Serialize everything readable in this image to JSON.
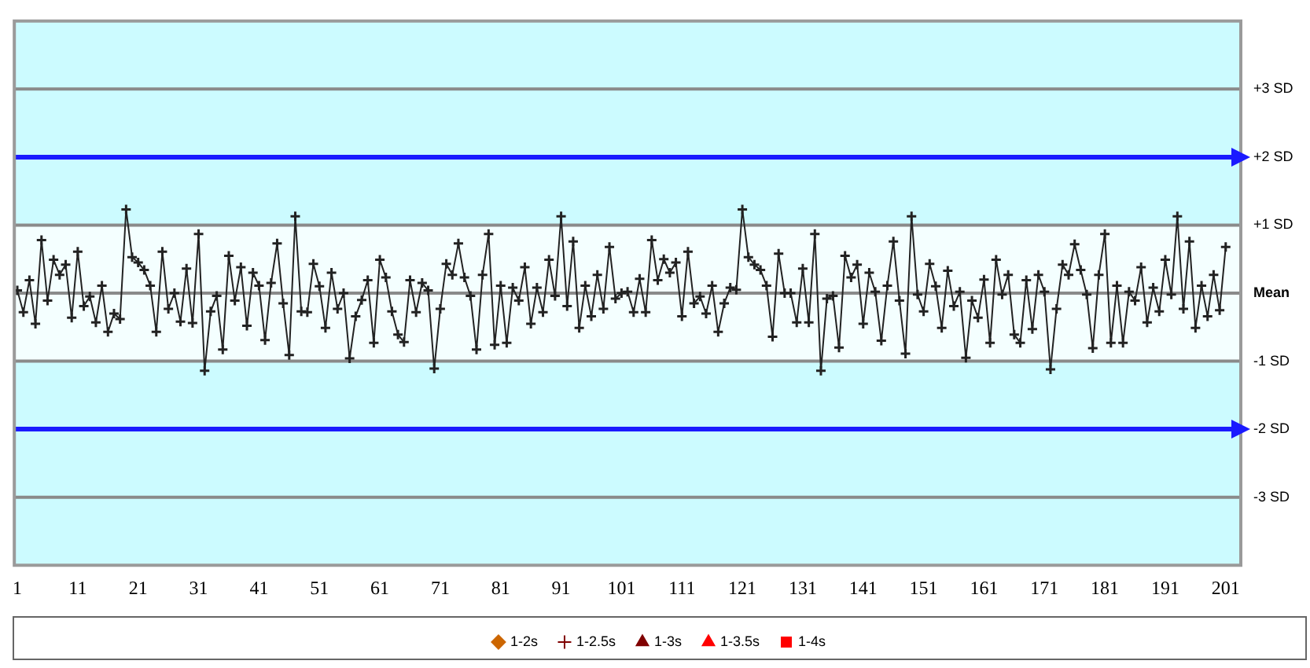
{
  "chart_data": {
    "type": "line",
    "x": [
      1,
      2,
      3,
      4,
      5,
      6,
      7,
      8,
      9,
      10,
      11,
      12,
      13,
      14,
      15,
      16,
      17,
      18,
      19,
      20,
      21,
      22,
      23,
      24,
      25,
      26,
      27,
      28,
      29,
      30,
      31,
      32,
      33,
      34,
      35,
      36,
      37,
      38,
      39,
      40,
      41,
      42,
      43,
      44,
      45,
      46,
      47,
      48,
      49,
      50,
      51,
      52,
      53,
      54,
      55,
      56,
      57,
      58,
      59,
      60,
      61,
      62,
      63,
      64,
      65,
      66,
      67,
      68,
      69,
      70,
      71,
      72,
      73,
      74,
      75,
      76,
      77,
      78,
      79,
      80,
      81,
      82,
      83,
      84,
      85,
      86,
      87,
      88,
      89,
      90,
      91,
      92,
      93,
      94,
      95,
      96,
      97,
      98,
      99,
      100,
      101,
      102,
      103,
      104,
      105,
      106,
      107,
      108,
      109,
      110,
      111,
      112,
      113,
      114,
      115,
      116,
      117,
      118,
      119,
      120,
      121,
      122,
      123,
      124,
      125,
      126,
      127,
      128,
      129,
      130,
      131,
      132,
      133,
      134,
      135,
      136,
      137,
      138,
      139,
      140,
      141,
      142,
      143,
      144,
      145,
      146,
      147,
      148,
      149,
      150,
      151,
      152,
      153,
      154,
      155,
      156,
      157,
      158,
      159,
      160,
      161,
      162,
      163,
      164,
      165,
      166,
      167,
      168,
      169,
      170,
      171,
      172,
      173,
      174,
      175,
      176,
      177,
      178,
      179,
      180,
      181,
      182,
      183,
      184,
      185,
      186,
      187,
      188,
      189,
      190,
      191,
      192,
      193,
      194,
      195,
      196,
      197,
      198,
      199,
      200,
      201
    ],
    "series": [
      {
        "color": "#222222",
        "marker": "cross",
        "values": [
          0.04,
          -0.28,
          0.19,
          -0.45,
          0.78,
          -0.11,
          0.49,
          0.27,
          0.42,
          -0.36,
          0.61,
          -0.19,
          -0.05,
          -0.43,
          0.11,
          -0.57,
          -0.3,
          -0.38,
          1.23,
          0.53,
          0.45,
          0.34,
          0.11,
          -0.57,
          0.61,
          -0.23,
          0,
          -0.42,
          0.36,
          -0.44,
          0.87,
          -1.14,
          -0.27,
          -0.04,
          -0.83,
          0.55,
          -0.11,
          0.38,
          -0.48,
          0.3,
          0.11,
          -0.69,
          0.15,
          0.73,
          -0.15,
          -0.91,
          1.13,
          -0.27,
          -0.28,
          0.43,
          0.1,
          -0.51,
          0.3,
          -0.23,
          0,
          -0.96,
          -0.34,
          -0.1,
          0.19,
          -0.73,
          0.49,
          0.23,
          -0.27,
          -0.61,
          -0.72,
          0.19,
          -0.28,
          0.15,
          0.04,
          -1.11,
          -0.23,
          0.43,
          0.27,
          0.73,
          0.23,
          -0.04,
          -0.83,
          0.27,
          0.87,
          -0.76,
          0.11,
          -0.73,
          0.08,
          -0.11,
          0.38,
          -0.45,
          0.08,
          -0.28,
          0.49,
          -0.04,
          1.13,
          -0.19,
          0.76,
          -0.51,
          0.11,
          -0.34,
          0.27,
          -0.23,
          0.68,
          -0.08,
          0,
          0.02,
          -0.28,
          0.21,
          -0.28,
          0.78,
          0.19,
          0.5,
          0.3,
          0.45,
          -0.34,
          0.61,
          -0.15,
          -0.05,
          -0.3,
          0.11,
          -0.57,
          -0.15,
          0.08,
          0.05,
          1.23,
          0.53,
          0.42,
          0.34,
          0.11,
          -0.64,
          0.58,
          0,
          0,
          -0.43,
          0.36,
          -0.43,
          0.87,
          -1.14,
          -0.08,
          -0.04,
          -0.8,
          0.55,
          0.23,
          0.42,
          -0.45,
          0.3,
          0.02,
          -0.7,
          0.11,
          0.76,
          -0.11,
          -0.89,
          1.13,
          -0.02,
          -0.27,
          0.43,
          0.1,
          -0.51,
          0.33,
          -0.19,
          0.02,
          -0.95,
          -0.11,
          -0.36,
          0.2,
          -0.73,
          0.49,
          -0.02,
          0.27,
          -0.61,
          -0.73,
          0.19,
          -0.53,
          0.27,
          0.02,
          -1.12,
          -0.23,
          0.42,
          0.27,
          0.72,
          0.34,
          -0.02,
          -0.81,
          0.27,
          0.87,
          -0.73,
          0.11,
          -0.73,
          0.02,
          -0.11,
          0.38,
          -0.43,
          0.08,
          -0.27,
          0.49,
          -0.02,
          1.13,
          -0.23,
          0.76,
          -0.51,
          0.11,
          -0.34,
          0.27,
          -0.25,
          0.68
        ]
      },
      {
        "name": "1-2s",
        "color": "#cc6600",
        "marker": "diamond",
        "values": [
          null,
          null,
          null,
          null,
          null,
          null,
          null,
          null,
          null,
          null,
          null,
          null,
          null,
          null,
          null,
          null,
          null,
          null,
          null,
          null,
          null,
          null,
          null,
          null,
          null,
          null,
          null,
          null,
          null,
          null,
          null,
          null,
          null,
          null,
          null,
          null,
          null,
          null,
          null,
          null,
          null,
          null,
          null,
          null,
          null,
          null,
          null,
          null,
          null,
          null,
          null,
          null,
          null,
          null,
          null,
          null,
          null,
          null,
          null,
          null,
          null,
          null,
          null,
          null,
          null,
          null,
          null,
          null,
          null,
          null,
          null,
          null,
          null,
          null,
          null,
          null,
          null,
          null,
          null,
          null,
          null,
          null,
          null,
          null,
          null,
          null,
          null,
          null,
          null,
          null,
          null,
          null,
          null,
          null,
          null,
          null,
          null,
          null,
          null,
          null,
          null,
          null,
          null,
          null,
          null,
          null,
          null,
          null,
          null,
          null,
          null,
          null,
          null,
          null,
          null,
          null,
          null,
          null,
          null,
          null,
          null,
          null,
          null,
          null,
          null,
          null,
          null,
          null,
          null,
          null,
          null,
          null,
          null,
          null,
          null,
          null,
          null,
          null,
          null,
          null,
          null,
          null,
          null,
          null,
          null,
          null,
          null,
          null,
          null,
          null,
          null,
          null,
          null,
          null,
          null,
          null,
          null,
          null,
          null,
          null,
          null,
          null,
          null,
          null,
          null,
          null,
          null,
          null,
          null,
          null,
          null,
          null,
          null,
          null,
          null,
          null,
          null,
          null,
          null,
          null,
          null,
          null,
          null,
          null,
          null,
          null,
          null,
          null,
          null,
          null,
          null,
          null,
          null,
          null,
          null,
          null,
          null,
          null,
          null,
          null,
          null
        ]
      },
      {
        "name": "1-2.5s",
        "color": "#800000",
        "marker": "cross",
        "values": [
          null,
          null,
          null,
          null,
          null,
          null,
          null,
          null,
          null,
          null,
          null,
          null,
          null,
          null,
          null,
          null,
          null,
          null,
          null,
          null,
          null,
          null,
          null,
          null,
          null,
          null,
          null,
          null,
          null,
          null,
          null,
          null,
          null,
          null,
          null,
          null,
          null,
          null,
          null,
          null,
          null,
          null,
          null,
          null,
          null,
          null,
          null,
          null,
          null,
          null,
          null,
          null,
          null,
          null,
          null,
          null,
          null,
          null,
          null,
          null,
          null,
          null,
          null,
          null,
          null,
          null,
          null,
          null,
          null,
          null,
          null,
          null,
          null,
          null,
          null,
          null,
          null,
          null,
          null,
          null,
          null,
          null,
          null,
          null,
          null,
          null,
          null,
          null,
          null,
          null,
          null,
          null,
          null,
          null,
          null,
          null,
          null,
          null,
          null,
          null,
          null,
          null,
          null,
          null,
          null,
          null,
          null,
          null,
          null,
          null,
          null,
          null,
          null,
          null,
          null,
          null,
          null,
          null,
          null,
          null,
          null,
          null,
          null,
          null,
          null,
          null,
          null,
          null,
          null,
          null,
          null,
          null,
          null,
          null,
          null,
          null,
          null,
          null,
          null,
          null,
          null,
          null,
          null,
          null,
          null,
          null,
          null,
          null,
          null,
          null,
          null,
          null,
          null,
          null,
          null,
          null,
          null,
          null,
          null,
          null,
          null,
          null,
          null,
          null,
          null,
          null,
          null,
          null,
          null,
          null,
          null,
          null,
          null,
          null,
          null,
          null,
          null,
          null,
          null,
          null,
          null,
          null,
          null,
          null,
          null,
          null,
          null,
          null,
          null,
          null,
          null,
          null,
          null,
          null,
          null,
          null,
          null,
          null,
          null,
          null,
          null
        ]
      },
      {
        "name": "1-3s",
        "color": "#800000",
        "marker": "triangle",
        "values": [
          null,
          null,
          null,
          null,
          null,
          null,
          null,
          null,
          null,
          null,
          null,
          null,
          null,
          null,
          null,
          null,
          null,
          null,
          null,
          null,
          null,
          null,
          null,
          null,
          null,
          null,
          null,
          null,
          null,
          null,
          null,
          null,
          null,
          null,
          null,
          null,
          null,
          null,
          null,
          null,
          null,
          null,
          null,
          null,
          null,
          null,
          null,
          null,
          null,
          null,
          null,
          null,
          null,
          null,
          null,
          null,
          null,
          null,
          null,
          null,
          null,
          null,
          null,
          null,
          null,
          null,
          null,
          null,
          null,
          null,
          null,
          null,
          null,
          null,
          null,
          null,
          null,
          null,
          null,
          null,
          null,
          null,
          null,
          null,
          null,
          null,
          null,
          null,
          null,
          null,
          null,
          null,
          null,
          null,
          null,
          null,
          null,
          null,
          null,
          null,
          null,
          null,
          null,
          null,
          null,
          null,
          null,
          null,
          null,
          null,
          null,
          null,
          null,
          null,
          null,
          null,
          null,
          null,
          null,
          null,
          null,
          null,
          null,
          null,
          null,
          null,
          null,
          null,
          null,
          null,
          null,
          null,
          null,
          null,
          null,
          null,
          null,
          null,
          null,
          null,
          null,
          null,
          null,
          null,
          null,
          null,
          null,
          null,
          null,
          null,
          null,
          null,
          null,
          null,
          null,
          null,
          null,
          null,
          null,
          null,
          null,
          null,
          null,
          null,
          null,
          null,
          null,
          null,
          null,
          null,
          null,
          null,
          null,
          null,
          null,
          null,
          null,
          null,
          null,
          null,
          null,
          null,
          null,
          null,
          null,
          null,
          null,
          null,
          null,
          null,
          null,
          null,
          null,
          null,
          null,
          null,
          null,
          null,
          null,
          null,
          null
        ]
      },
      {
        "name": "1-3.5s",
        "color": "#ff0000",
        "marker": "triangle",
        "values": [
          null,
          null,
          null,
          null,
          null,
          null,
          null,
          null,
          null,
          null,
          null,
          null,
          null,
          null,
          null,
          null,
          null,
          null,
          null,
          null,
          null,
          null,
          null,
          null,
          null,
          null,
          null,
          null,
          null,
          null,
          null,
          null,
          null,
          null,
          null,
          null,
          null,
          null,
          null,
          null,
          null,
          null,
          null,
          null,
          null,
          null,
          null,
          null,
          null,
          null,
          null,
          null,
          null,
          null,
          null,
          null,
          null,
          null,
          null,
          null,
          null,
          null,
          null,
          null,
          null,
          null,
          null,
          null,
          null,
          null,
          null,
          null,
          null,
          null,
          null,
          null,
          null,
          null,
          null,
          null,
          null,
          null,
          null,
          null,
          null,
          null,
          null,
          null,
          null,
          null,
          null,
          null,
          null,
          null,
          null,
          null,
          null,
          null,
          null,
          null,
          null,
          null,
          null,
          null,
          null,
          null,
          null,
          null,
          null,
          null,
          null,
          null,
          null,
          null,
          null,
          null,
          null,
          null,
          null,
          null,
          null,
          null,
          null,
          null,
          null,
          null,
          null,
          null,
          null,
          null,
          null,
          null,
          null,
          null,
          null,
          null,
          null,
          null,
          null,
          null,
          null,
          null,
          null,
          null,
          null,
          null,
          null,
          null,
          null,
          null,
          null,
          null,
          null,
          null,
          null,
          null,
          null,
          null,
          null,
          null,
          null,
          null,
          null,
          null,
          null,
          null,
          null,
          null,
          null,
          null,
          null,
          null,
          null,
          null,
          null,
          null,
          null,
          null,
          null,
          null,
          null,
          null,
          null,
          null,
          null,
          null,
          null,
          null,
          null,
          null,
          null,
          null,
          null,
          null,
          null,
          null,
          null,
          null,
          null,
          null,
          null
        ]
      },
      {
        "name": "1-4s",
        "color": "#ff0000",
        "marker": "square",
        "values": [
          null,
          null,
          null,
          null,
          null,
          null,
          null,
          null,
          null,
          null,
          null,
          null,
          null,
          null,
          null,
          null,
          null,
          null,
          null,
          null,
          null,
          null,
          null,
          null,
          null,
          null,
          null,
          null,
          null,
          null,
          null,
          null,
          null,
          null,
          null,
          null,
          null,
          null,
          null,
          null,
          null,
          null,
          null,
          null,
          null,
          null,
          null,
          null,
          null,
          null,
          null,
          null,
          null,
          null,
          null,
          null,
          null,
          null,
          null,
          null,
          null,
          null,
          null,
          null,
          null,
          null,
          null,
          null,
          null,
          null,
          null,
          null,
          null,
          null,
          null,
          null,
          null,
          null,
          null,
          null,
          null,
          null,
          null,
          null,
          null,
          null,
          null,
          null,
          null,
          null,
          null,
          null,
          null,
          null,
          null,
          null,
          null,
          null,
          null,
          null,
          null,
          null,
          null,
          null,
          null,
          null,
          null,
          null,
          null,
          null,
          null,
          null,
          null,
          null,
          null,
          null,
          null,
          null,
          null,
          null,
          null,
          null,
          null,
          null,
          null,
          null,
          null,
          null,
          null,
          null,
          null,
          null,
          null,
          null,
          null,
          null,
          null,
          null,
          null,
          null,
          null,
          null,
          null,
          null,
          null,
          null,
          null,
          null,
          null,
          null,
          null,
          null,
          null,
          null,
          null,
          null,
          null,
          null,
          null,
          null,
          null,
          null,
          null,
          null,
          null,
          null,
          null,
          null,
          null,
          null,
          null,
          null,
          null,
          null,
          null,
          null,
          null,
          null,
          null,
          null,
          null,
          null,
          null,
          null,
          null,
          null,
          null,
          null,
          null,
          null,
          null,
          null,
          null,
          null,
          null,
          null,
          null,
          null,
          null,
          null,
          null
        ]
      }
    ],
    "xlim": [
      0.5,
      203.5
    ],
    "xticks": [
      1,
      11,
      21,
      31,
      41,
      51,
      61,
      71,
      81,
      91,
      101,
      111,
      121,
      131,
      141,
      151,
      161,
      171,
      181,
      191,
      201
    ],
    "ylim": [
      -4,
      4
    ],
    "yticks": [
      {
        "value": -3,
        "label": "-3 SD"
      },
      {
        "value": -1,
        "label": "-1 SD"
      },
      {
        "value": 0,
        "label": "Mean"
      },
      {
        "value": 1,
        "label": "+1 SD"
      },
      {
        "value": 3,
        "label": "+3 SD"
      }
    ],
    "grid": "y",
    "legend": "bottom",
    "line_style": "solid",
    "bands": [
      {
        "axis": "y",
        "from": -4,
        "to": -1,
        "color": "#ccfbff"
      },
      {
        "axis": "y",
        "from": -1,
        "to": 1,
        "color": "#f4ffff"
      },
      {
        "axis": "y",
        "from": 1,
        "to": 4,
        "color": "#ccfbff"
      }
    ],
    "ref_lines": [
      {
        "axis": "y",
        "value": 2,
        "label": "+2 SD",
        "color": "#1a1aff"
      },
      {
        "axis": "y",
        "value": -2,
        "label": "-2 SD",
        "color": "#1a1aff"
      }
    ]
  }
}
